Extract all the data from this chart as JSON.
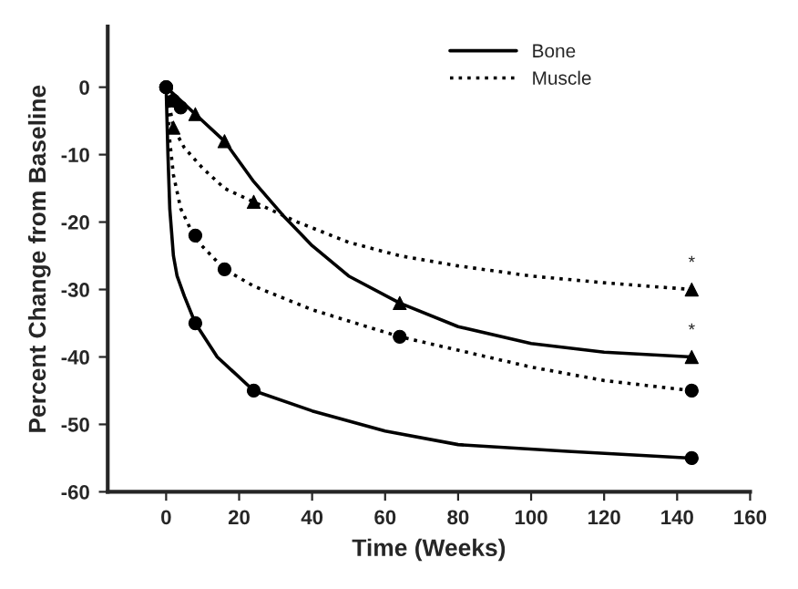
{
  "chart_data": {
    "type": "scatter",
    "xlabel": "Time (Weeks)",
    "ylabel": "Percent Change from Baseline",
    "xlim": [
      -16,
      160
    ],
    "ylim": [
      -60,
      9
    ],
    "xticks": [
      0,
      20,
      40,
      60,
      80,
      100,
      120,
      140,
      160
    ],
    "yticks": [
      0,
      -10,
      -20,
      -30,
      -40,
      -50,
      -60
    ],
    "grid": false,
    "legend": "top right",
    "series": [
      {
        "name": "Bone",
        "type": "line",
        "line_style": "solid",
        "marker": "none",
        "color": "#000000",
        "x": [
          0,
          0.5,
          1,
          2,
          3,
          5,
          8,
          14,
          24,
          40,
          60,
          80,
          110,
          144
        ],
        "values": [
          0,
          -10,
          -18,
          -25,
          -28,
          -31,
          -35,
          -40,
          -45,
          -48,
          -51,
          -53,
          -54,
          -55
        ]
      },
      {
        "type": "line",
        "line_style": "solid",
        "marker": "none",
        "color": "#000000",
        "x": [
          0,
          4,
          8,
          16,
          24,
          32,
          40,
          50,
          64,
          80,
          100,
          120,
          144
        ],
        "values": [
          0,
          -2,
          -4,
          -8,
          -14,
          -19,
          -23.5,
          -28,
          -32,
          -35.5,
          -38,
          -39.3,
          -40
        ]
      },
      {
        "name": "Muscle",
        "type": "line",
        "line_style": "dotted",
        "marker": "none",
        "color": "#000000",
        "x": [
          0,
          1,
          2,
          5,
          10,
          16,
          24,
          36,
          50,
          64,
          80,
          100,
          120,
          144
        ],
        "values": [
          0,
          -3,
          -6,
          -9,
          -12,
          -15,
          -17,
          -20,
          -23,
          -25,
          -26.5,
          -28,
          -29,
          -30
        ]
      },
      {
        "type": "line",
        "line_style": "dotted",
        "marker": "none",
        "color": "#000000",
        "x": [
          0,
          1,
          2,
          4,
          8,
          16,
          24,
          40,
          64,
          80,
          100,
          120,
          144
        ],
        "values": [
          0,
          -8,
          -13,
          -18,
          -22.5,
          -27,
          -29.5,
          -33,
          -37,
          -39,
          -41.5,
          -43.5,
          -45
        ]
      },
      {
        "marker": "circle",
        "color": "#000000",
        "x": [
          0,
          2,
          8,
          24,
          144
        ],
        "values": [
          0,
          -2,
          -35,
          -45,
          -55
        ]
      },
      {
        "marker": "triangle",
        "color": "#000000",
        "x": [
          8,
          16,
          64,
          144
        ],
        "values": [
          -4,
          -8,
          -32,
          -40
        ],
        "value_labels": [
          null,
          null,
          null,
          "*"
        ]
      },
      {
        "marker": "triangle",
        "color": "#000000",
        "x": [
          2,
          24,
          144
        ],
        "values": [
          -6,
          -17,
          -30
        ],
        "value_labels": [
          null,
          null,
          "*"
        ]
      },
      {
        "marker": "circle",
        "color": "#000000",
        "x": [
          0,
          4,
          8,
          16,
          64,
          144
        ],
        "values": [
          0,
          -3,
          -22,
          -27,
          -37,
          -45
        ]
      }
    ]
  }
}
